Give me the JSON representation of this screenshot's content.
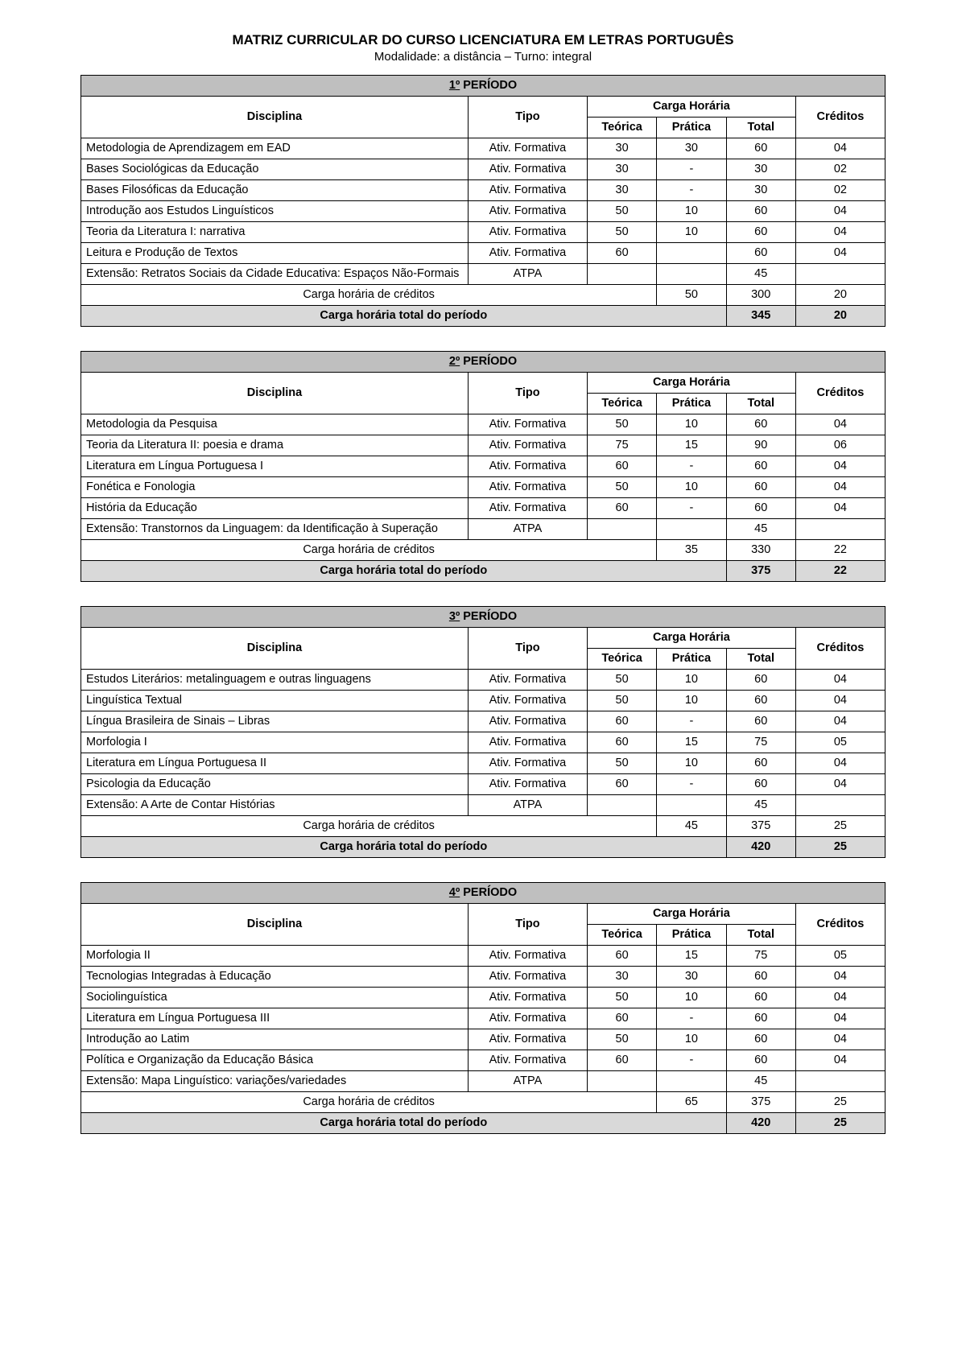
{
  "title": "MATRIZ CURRICULAR DO CURSO LICENCIATURA EM LETRAS PORTUGUÊS",
  "subtitle": "Modalidade: a distância – Turno: integral",
  "col_widths": {
    "disciplina": 390,
    "tipo": 120,
    "teorica": 70,
    "pratica": 70,
    "total": 70,
    "creditos": 90
  },
  "headers": {
    "disciplina": "Disciplina",
    "tipo": "Tipo",
    "carga_horaria": "Carga Horária",
    "teorica": "Teórica",
    "pratica": "Prática",
    "total": "Total",
    "creditos": "Créditos"
  },
  "labels": {
    "carga_creditos": "Carga horária de créditos",
    "carga_total": "Carga horária total do período"
  },
  "periods": [
    {
      "ord": "1",
      "suffix": "º",
      "label": "PERÍODO",
      "rows": [
        {
          "disc": "Metodologia de Aprendizagem em EAD",
          "tipo": "Ativ. Formativa",
          "teo": "30",
          "pra": "30",
          "tot": "60",
          "cred": "04"
        },
        {
          "disc": "Bases Sociológicas da Educação",
          "tipo": "Ativ. Formativa",
          "teo": "30",
          "pra": "-",
          "tot": "30",
          "cred": "02"
        },
        {
          "disc": "Bases Filosóficas da Educação",
          "tipo": "Ativ. Formativa",
          "teo": "30",
          "pra": "-",
          "tot": "30",
          "cred": "02"
        },
        {
          "disc": "Introdução aos Estudos Linguísticos",
          "tipo": "Ativ. Formativa",
          "teo": "50",
          "pra": "10",
          "tot": "60",
          "cred": "04"
        },
        {
          "disc": "Teoria da Literatura I: narrativa",
          "tipo": "Ativ. Formativa",
          "teo": "50",
          "pra": "10",
          "tot": "60",
          "cred": "04"
        },
        {
          "disc": "Leitura e Produção de Textos",
          "tipo": "Ativ. Formativa",
          "teo": "60",
          "pra": "",
          "tot": "60",
          "cred": "04"
        },
        {
          "disc": "Extensão: Retratos Sociais da Cidade Educativa: Espaços Não-Formais",
          "tipo": "ATPA",
          "teo": "",
          "pra": "",
          "tot": "45",
          "cred": "",
          "cls": "smaller-disc"
        }
      ],
      "creditos": {
        "pra": "50",
        "tot": "300",
        "cred": "20"
      },
      "total": {
        "tot": "345",
        "cred": "20"
      }
    },
    {
      "ord": "2",
      "suffix": "º",
      "label": "PERÍODO",
      "rows": [
        {
          "disc": "Metodologia da Pesquisa",
          "tipo": "Ativ. Formativa",
          "teo": "50",
          "pra": "10",
          "tot": "60",
          "cred": "04"
        },
        {
          "disc": "Teoria da Literatura II: poesia e drama",
          "tipo": "Ativ. Formativa",
          "teo": "75",
          "pra": "15",
          "tot": "90",
          "cred": "06"
        },
        {
          "disc": "Literatura em Língua Portuguesa I",
          "tipo": "Ativ. Formativa",
          "teo": "60",
          "pra": "-",
          "tot": "60",
          "cred": "04"
        },
        {
          "disc": "Fonética e Fonologia",
          "tipo": "Ativ. Formativa",
          "teo": "50",
          "pra": "10",
          "tot": "60",
          "cred": "04"
        },
        {
          "disc": "História da Educação",
          "tipo": "Ativ. Formativa",
          "teo": "60",
          "pra": "-",
          "tot": "60",
          "cred": "04"
        },
        {
          "disc": "Extensão: Transtornos da Linguagem: da Identificação à Superação",
          "tipo": "ATPA",
          "teo": "",
          "pra": "",
          "tot": "45",
          "cred": "",
          "cls": "small-disc"
        }
      ],
      "creditos": {
        "pra": "35",
        "tot": "330",
        "cred": "22"
      },
      "total": {
        "tot": "375",
        "cred": "22"
      }
    },
    {
      "ord": "3",
      "suffix": "º",
      "label": "PERÍODO",
      "rows": [
        {
          "disc": "Estudos Literários: metalinguagem e outras linguagens",
          "tipo": "Ativ. Formativa",
          "teo": "50",
          "pra": "10",
          "tot": "60",
          "cred": "04",
          "cls": "small-disc"
        },
        {
          "disc": "Linguística Textual",
          "tipo": "Ativ. Formativa",
          "teo": "50",
          "pra": "10",
          "tot": "60",
          "cred": "04"
        },
        {
          "disc": "Língua Brasileira de Sinais – Libras",
          "tipo": "Ativ. Formativa",
          "teo": "60",
          "pra": "-",
          "tot": "60",
          "cred": "04"
        },
        {
          "disc": "Morfologia I",
          "tipo": "Ativ. Formativa",
          "teo": "60",
          "pra": "15",
          "tot": "75",
          "cred": "05"
        },
        {
          "disc": "Literatura em Língua Portuguesa II",
          "tipo": "Ativ. Formativa",
          "teo": "50",
          "pra": "10",
          "tot": "60",
          "cred": "04"
        },
        {
          "disc": "Psicologia da Educação",
          "tipo": "Ativ. Formativa",
          "teo": "60",
          "pra": "-",
          "tot": "60",
          "cred": "04"
        },
        {
          "disc": "Extensão: A Arte de Contar Histórias",
          "tipo": "ATPA",
          "teo": "",
          "pra": "",
          "tot": "45",
          "cred": ""
        }
      ],
      "creditos": {
        "pra": "45",
        "tot": "375",
        "cred": "25"
      },
      "total": {
        "tot": "420",
        "cred": "25"
      }
    },
    {
      "ord": "4",
      "suffix": "º",
      "label": "PERÍODO",
      "rows": [
        {
          "disc": "Morfologia II",
          "tipo": "Ativ. Formativa",
          "teo": "60",
          "pra": "15",
          "tot": "75",
          "cred": "05"
        },
        {
          "disc": "Tecnologias Integradas à Educação",
          "tipo": "Ativ. Formativa",
          "teo": "30",
          "pra": "30",
          "tot": "60",
          "cred": "04"
        },
        {
          "disc": "Sociolinguística",
          "tipo": "Ativ. Formativa",
          "teo": "50",
          "pra": "10",
          "tot": "60",
          "cred": "04"
        },
        {
          "disc": "Literatura em Língua Portuguesa III",
          "tipo": "Ativ. Formativa",
          "teo": "60",
          "pra": "-",
          "tot": "60",
          "cred": "04"
        },
        {
          "disc": "Introdução ao Latim",
          "tipo": "Ativ. Formativa",
          "teo": "50",
          "pra": "10",
          "tot": "60",
          "cred": "04"
        },
        {
          "disc": "Política e Organização da Educação Básica",
          "tipo": "Ativ. Formativa",
          "teo": "60",
          "pra": "-",
          "tot": "60",
          "cred": "04"
        },
        {
          "disc": "Extensão: Mapa Linguístico: variações/variedades",
          "tipo": "ATPA",
          "teo": "",
          "pra": "",
          "tot": "45",
          "cred": ""
        }
      ],
      "creditos": {
        "pra": "65",
        "tot": "375",
        "cred": "25"
      },
      "total": {
        "tot": "420",
        "cred": "25"
      }
    }
  ]
}
